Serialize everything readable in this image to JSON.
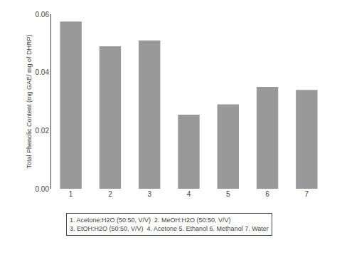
{
  "chart_data": {
    "type": "bar",
    "categories": [
      "1",
      "2",
      "3",
      "4",
      "5",
      "6",
      "7"
    ],
    "values": [
      0.0575,
      0.049,
      0.051,
      0.0255,
      0.029,
      0.035,
      0.034
    ],
    "color": "#999999",
    "ylabel": "Total Phenolic Content (mg GAE/ mg of DHRP)",
    "ylim": [
      0,
      0.06
    ],
    "yticks": [
      {
        "value": 0,
        "label": "0.00"
      },
      0.02,
      0.04,
      0.06
    ],
    "annotations": [
      "1. Acetone:H2O (50:50, V/V)  2. MeOH:H2O (50:50, V/V)",
      "3. EtOH:H2O (50:50, V/V)  4. Acetone 5. Ethanol 6. Methanol 7. Water"
    ],
    "grid": false
  }
}
